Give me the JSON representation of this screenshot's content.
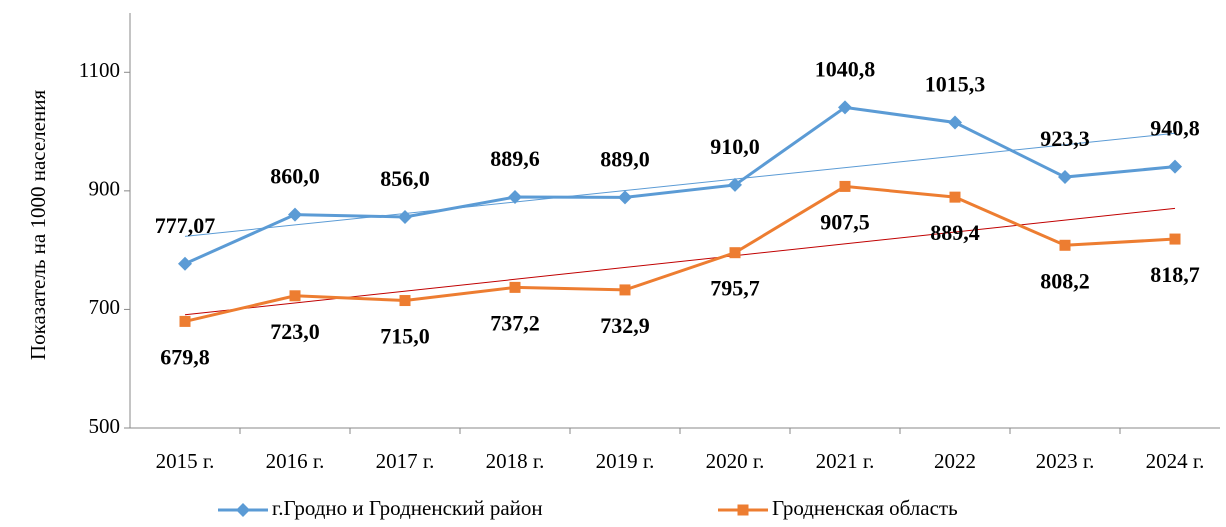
{
  "chart_data": {
    "type": "line",
    "y_label": "Показатель на 1000 населения",
    "categories": [
      "2015 г.",
      "2016 г.",
      "2017 г.",
      "2018 г.",
      "2019 г.",
      "2020 г.",
      "2021 г.",
      "2022",
      "2023 г.",
      "2024 г."
    ],
    "series": [
      {
        "name": "г.Гродно и Гродненский район",
        "color": "#5b9bd5",
        "label_color": "#5b9bd5",
        "trend_color": "#5b9bd5",
        "marker": "diamond",
        "values": [
          777.07,
          860.0,
          856.0,
          889.6,
          889.0,
          910.0,
          1040.8,
          1015.3,
          923.3,
          940.8
        ],
        "value_labels": [
          "777,07",
          "860,0",
          "856,0",
          "889,6",
          "889,0",
          "910,0",
          "1040,8",
          "1015,3",
          "923,3",
          "940,8"
        ]
      },
      {
        "name": "Гродненская область",
        "color": "#ed7d31",
        "label_color": "#c00000",
        "trend_color": "#c00000",
        "marker": "square",
        "values": [
          679.8,
          723.0,
          715.0,
          737.2,
          732.9,
          795.7,
          907.5,
          889.4,
          808.2,
          818.7
        ],
        "value_labels": [
          "679,8",
          "723,0",
          "715,0",
          "737,2",
          "732,9",
          "795,7",
          "907,5",
          "889,4",
          "808,2",
          "818,7"
        ]
      }
    ],
    "ylim": [
      500,
      1200
    ],
    "yticks": [
      500,
      700,
      900,
      1100
    ],
    "trendline": true,
    "grid": false,
    "legend": "bottom"
  }
}
